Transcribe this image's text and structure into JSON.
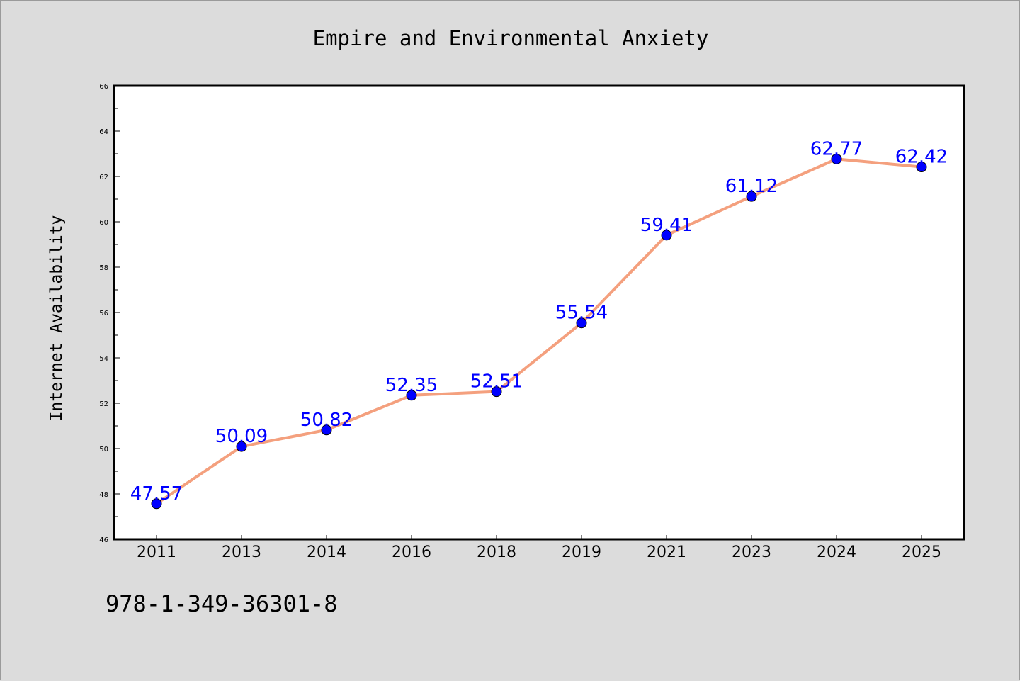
{
  "footer": {
    "code": "978-1-349-36301-8"
  },
  "chart_data": {
    "type": "line",
    "title": "Empire and Environmental Anxiety",
    "xlabel": "",
    "ylabel": "Internet Availability",
    "categories": [
      "2011",
      "2013",
      "2014",
      "2016",
      "2018",
      "2019",
      "2021",
      "2023",
      "2024",
      "2025"
    ],
    "series": [
      {
        "values": [
          47.57,
          50.09,
          50.82,
          52.35,
          52.51,
          55.54,
          59.41,
          61.12,
          62.77,
          62.42
        ],
        "data_labels": [
          "47.57",
          "50.09",
          "50.82",
          "52.35",
          "52.51",
          "55.54",
          "59.41",
          "61.12",
          "62.77",
          "62.42"
        ],
        "line_color": "#f4a07e",
        "marker_color": "#0000ff"
      }
    ],
    "ylim": [
      46,
      66
    ],
    "y_ticks": [
      46,
      48,
      50,
      52,
      54,
      56,
      58,
      60,
      62,
      64,
      66
    ],
    "y_tick_labels": [
      "46",
      "48",
      "50",
      "52",
      "54",
      "56",
      "58",
      "60",
      "62",
      "64",
      "66"
    ],
    "grid": false,
    "legend": "none",
    "colors": {
      "background": "#dcdcdc",
      "plot_background": "#ffffff",
      "label_text": "#0000ff"
    }
  }
}
